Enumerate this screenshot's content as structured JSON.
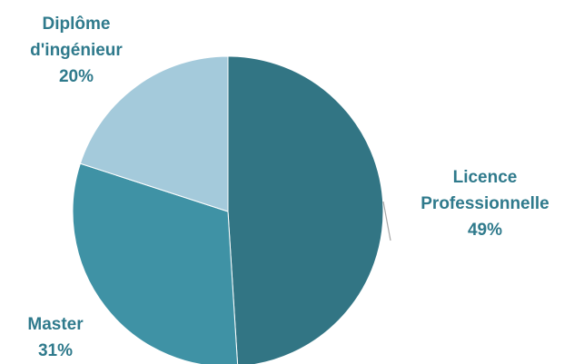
{
  "chart_data": {
    "type": "pie",
    "title": "",
    "slices": [
      {
        "category_lines": [
          "Licence",
          "Professionnelle"
        ],
        "percent_label": "49%",
        "value": 49,
        "color": "#327584"
      },
      {
        "category_lines": [
          "Master"
        ],
        "percent_label": "31%",
        "value": 31,
        "color": "#3f92a5"
      },
      {
        "category_lines": [
          "Diplôme",
          "d'ingénieur"
        ],
        "percent_label": "20%",
        "value": 20,
        "color": "#a4cadb"
      }
    ],
    "label_color": "#2f7a8c",
    "leader_line_color": "#a6a6a6",
    "start": "12 o'clock",
    "direction": "clockwise"
  }
}
